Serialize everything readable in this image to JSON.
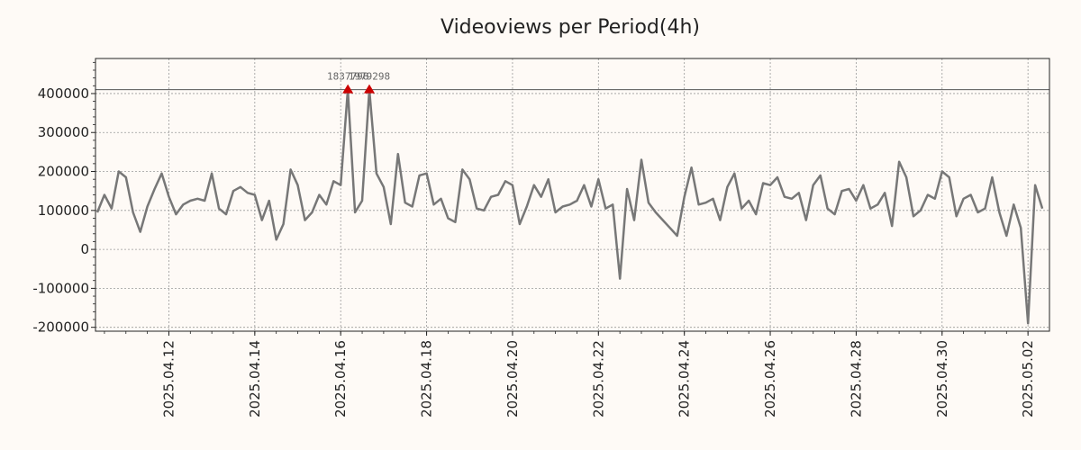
{
  "chart_data": {
    "type": "line",
    "title": "Videoviews per Period(4h)",
    "xlabel": "",
    "ylabel": "",
    "grid": true,
    "legend": "none",
    "colors": {
      "line": "#777777",
      "marker": "#cc0000",
      "refline": "#555555",
      "grid": "#999999",
      "background": "#fefaf6"
    },
    "xlim": [
      "2025-04-10T07:00",
      "2025-05-02T12:00"
    ],
    "ylim": [
      -210000,
      490000
    ],
    "x_ticks": [
      "2025.04.12",
      "2025.04.14",
      "2025.04.16",
      "2025.04.18",
      "2025.04.20",
      "2025.04.22",
      "2025.04.24",
      "2025.04.26",
      "2025.04.28",
      "2025.04.30",
      "2025.05.02"
    ],
    "y_ticks": [
      "400000",
      "300000",
      "200000",
      "100000",
      "0",
      "-100000",
      "-200000"
    ],
    "x_start": "2025-04-10T08:00",
    "x_step_hours": 4,
    "reference_line": 410000,
    "values": [
      95000,
      140000,
      105000,
      200000,
      185000,
      95000,
      45000,
      110000,
      155000,
      195000,
      135000,
      90000,
      115000,
      125000,
      130000,
      125000,
      195000,
      105000,
      90000,
      150000,
      160000,
      145000,
      140000,
      75000,
      125000,
      25000,
      65000,
      205000,
      165000,
      75000,
      95000,
      140000,
      115000,
      175000,
      165000,
      410000,
      95000,
      125000,
      410000,
      195000,
      160000,
      65000,
      245000,
      120000,
      110000,
      190000,
      195000,
      115000,
      130000,
      80000,
      70000,
      205000,
      180000,
      105000,
      100000,
      135000,
      140000,
      175000,
      165000,
      65000,
      110000,
      165000,
      135000,
      180000,
      95000,
      110000,
      115000,
      125000,
      165000,
      110000,
      180000,
      105000,
      115000,
      -75000,
      155000,
      75000,
      230000,
      120000,
      95000,
      75000,
      55000,
      35000,
      135000,
      210000,
      115000,
      120000,
      130000,
      75000,
      160000,
      195000,
      105000,
      125000,
      90000,
      170000,
      165000,
      185000,
      135000,
      130000,
      145000,
      75000,
      165000,
      190000,
      105000,
      90000,
      150000,
      155000,
      125000,
      165000,
      105000,
      115000,
      145000,
      60000,
      225000,
      185000,
      85000,
      100000,
      140000,
      130000,
      200000,
      185000,
      85000,
      130000,
      140000,
      95000,
      105000,
      185000,
      95000,
      35000,
      115000,
      55000,
      -190000,
      165000,
      105000
    ],
    "peaks": [
      {
        "index": 35,
        "value": 410000,
        "label": "1837798"
      },
      {
        "index": 38,
        "value": 410000,
        "label": "1979298"
      }
    ]
  }
}
